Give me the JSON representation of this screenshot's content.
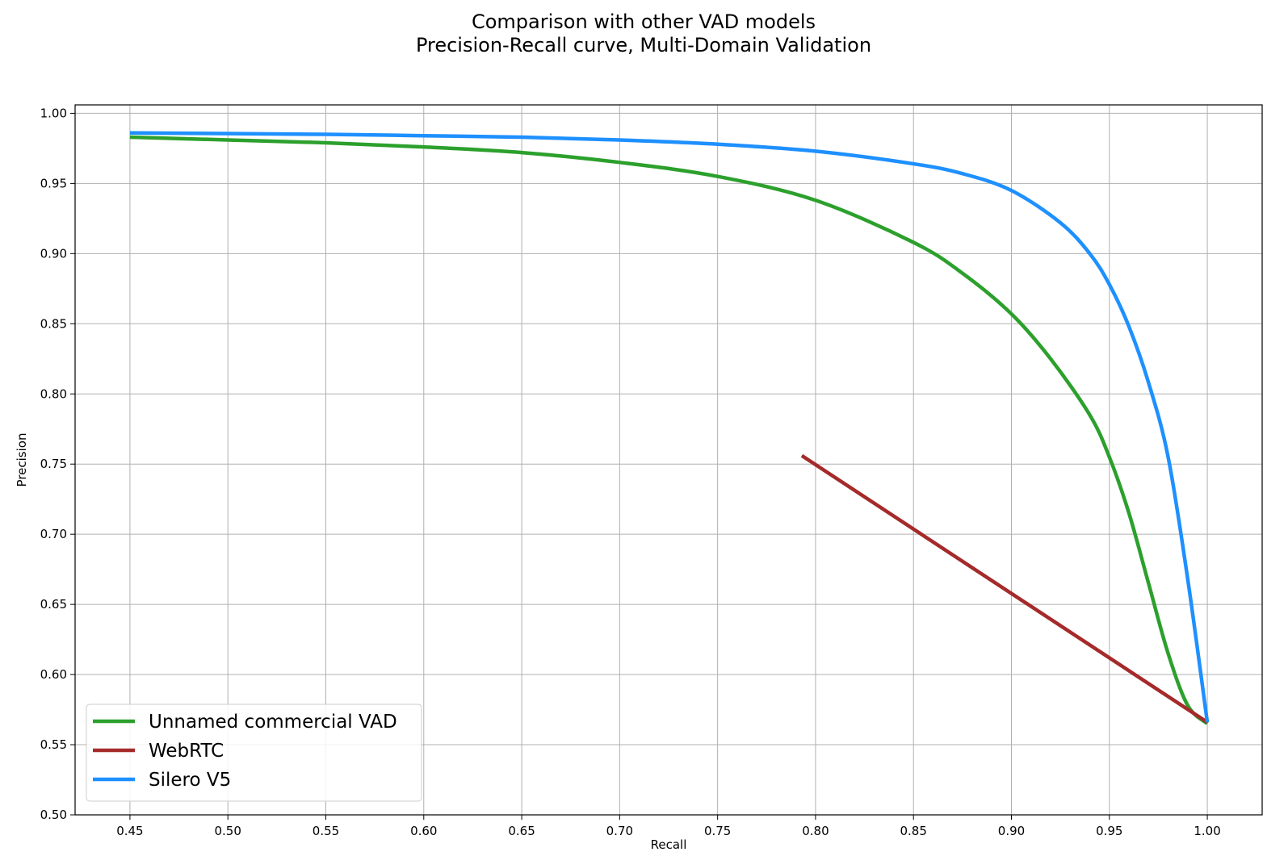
{
  "chart_data": {
    "type": "line",
    "title": "Comparison with other VAD models",
    "subtitle": "Precision-Recall curve, Multi-Domain Validation",
    "xlabel": "Recall",
    "ylabel": "Precision",
    "xlim": [
      0.422,
      1.028
    ],
    "ylim": [
      0.5,
      1.006
    ],
    "xticks": [
      "0.45",
      "0.50",
      "0.55",
      "0.60",
      "0.65",
      "0.70",
      "0.75",
      "0.80",
      "0.85",
      "0.90",
      "0.95",
      "1.00"
    ],
    "xtick_values": [
      0.45,
      0.5,
      0.55,
      0.6,
      0.65,
      0.7,
      0.75,
      0.8,
      0.85,
      0.9,
      0.95,
      1.0
    ],
    "yticks": [
      "0.50",
      "0.55",
      "0.60",
      "0.65",
      "0.70",
      "0.75",
      "0.80",
      "0.85",
      "0.90",
      "0.95",
      "1.00"
    ],
    "ytick_values": [
      0.5,
      0.55,
      0.6,
      0.65,
      0.7,
      0.75,
      0.8,
      0.85,
      0.9,
      0.95,
      1.0
    ],
    "grid": true,
    "legend_position": "bottom-left",
    "series": [
      {
        "name": "Unnamed commercial VAD",
        "color": "#2ca02c",
        "x": [
          0.45,
          0.5,
          0.55,
          0.6,
          0.65,
          0.7,
          0.75,
          0.8,
          0.85,
          0.875,
          0.9,
          0.92,
          0.94,
          0.95,
          0.96,
          0.97,
          0.98,
          0.99,
          1.0
        ],
        "y": [
          0.983,
          0.981,
          0.979,
          0.976,
          0.972,
          0.965,
          0.955,
          0.938,
          0.908,
          0.886,
          0.857,
          0.825,
          0.785,
          0.755,
          0.715,
          0.665,
          0.615,
          0.578,
          0.565
        ]
      },
      {
        "name": "WebRTC",
        "color": "#a52a2a",
        "x": [
          0.793,
          1.0
        ],
        "y": [
          0.756,
          0.566
        ]
      },
      {
        "name": "Silero V5",
        "color": "#1e90ff",
        "x": [
          0.45,
          0.55,
          0.6,
          0.65,
          0.7,
          0.75,
          0.8,
          0.85,
          0.875,
          0.9,
          0.925,
          0.94,
          0.95,
          0.96,
          0.97,
          0.98,
          0.99,
          1.0
        ],
        "y": [
          0.986,
          0.985,
          0.984,
          0.983,
          0.981,
          0.978,
          0.973,
          0.964,
          0.957,
          0.945,
          0.922,
          0.9,
          0.878,
          0.848,
          0.808,
          0.755,
          0.668,
          0.566
        ]
      }
    ]
  }
}
